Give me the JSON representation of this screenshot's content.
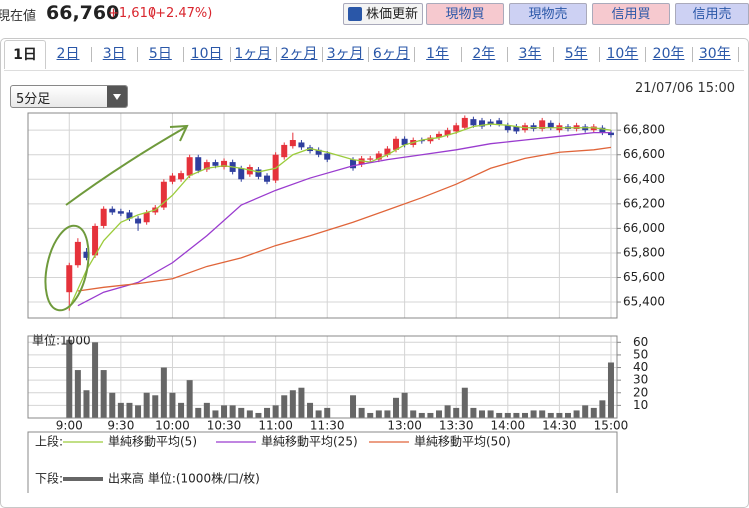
{
  "header": {
    "label": "現在値",
    "price": "66,760",
    "change": "+1,610",
    "change_pct": "(+2.47%)"
  },
  "buttons": [
    "株価更新",
    "現物買",
    "現物売",
    "信用買",
    "信用売"
  ],
  "tabs": [
    "1日",
    "2日",
    "3日",
    "5日",
    "10日",
    "1ヶ月",
    "2ヶ月",
    "3ヶ月",
    "6ヶ月",
    "1年",
    "2年",
    "3年",
    "5年",
    "10年",
    "20年",
    "30年"
  ],
  "selected_tab": 0,
  "interval": "5分足",
  "timestamp": "21/07/06 15:00",
  "legend": {
    "upper_label": "上段:",
    "lower_label": "下段:"
  },
  "chart_data": [
    {
      "type": "candlestick",
      "x": [
        0,
        1,
        2,
        3,
        4,
        5,
        6,
        7,
        8,
        9,
        10,
        11,
        12,
        13,
        14,
        15,
        16,
        17,
        18,
        19,
        20,
        21,
        22,
        23,
        24,
        25,
        26,
        27,
        28,
        29,
        30,
        33,
        34,
        35,
        36,
        37,
        38,
        39,
        40,
        41,
        42,
        43,
        44,
        45,
        46,
        47,
        48,
        49,
        50,
        51,
        52,
        53,
        54,
        55,
        56,
        57,
        58,
        59,
        60,
        61,
        62,
        63
      ],
      "open": [
        65480,
        65700,
        65810,
        65780,
        66020,
        66160,
        66140,
        66130,
        66080,
        66050,
        66130,
        66170,
        66380,
        66400,
        66430,
        66580,
        66480,
        66540,
        66500,
        66540,
        66490,
        66440,
        66480,
        66430,
        66390,
        66580,
        66670,
        66700,
        66660,
        66640,
        66610,
        66560,
        66520,
        66560,
        66560,
        66600,
        66640,
        66730,
        66680,
        66720,
        66710,
        66740,
        66760,
        66790,
        66820,
        66890,
        66880,
        66870,
        66880,
        66840,
        66830,
        66800,
        66840,
        66810,
        66860,
        66800,
        66830,
        66810,
        66830,
        66800,
        66820,
        66780
      ],
      "high": [
        65720,
        65920,
        65840,
        66040,
        66180,
        66180,
        66160,
        66150,
        66100,
        66150,
        66190,
        66400,
        66450,
        66470,
        66600,
        66600,
        66560,
        66560,
        66570,
        66560,
        66510,
        66520,
        66500,
        66450,
        66620,
        66700,
        66780,
        66720,
        66680,
        66660,
        66630,
        66580,
        66590,
        66590,
        66630,
        66670,
        66750,
        66750,
        66740,
        66740,
        66760,
        66790,
        66820,
        66860,
        66920,
        66910,
        66900,
        66890,
        66900,
        66860,
        66850,
        66860,
        66860,
        66900,
        66880,
        66860,
        66850,
        66860,
        66850,
        66850,
        66840,
        66800
      ],
      "low": [
        65330,
        65680,
        65740,
        65760,
        66000,
        66110,
        66100,
        66060,
        65980,
        66030,
        66110,
        66150,
        66360,
        66380,
        66410,
        66450,
        66460,
        66490,
        66480,
        66440,
        66380,
        66420,
        66400,
        66360,
        66370,
        66560,
        66650,
        66640,
        66610,
        66580,
        66540,
        66470,
        66500,
        66540,
        66540,
        66580,
        66620,
        66660,
        66660,
        66690,
        66690,
        66720,
        66740,
        66770,
        66800,
        66820,
        66810,
        66830,
        66830,
        66780,
        66770,
        66780,
        66790,
        66790,
        66800,
        66780,
        66790,
        66790,
        66780,
        66780,
        66760,
        66740
      ],
      "close": [
        65700,
        65890,
        65760,
        66020,
        66160,
        66130,
        66120,
        66080,
        66040,
        66130,
        66170,
        66380,
        66430,
        66450,
        66580,
        66470,
        66540,
        66510,
        66550,
        66460,
        66400,
        66500,
        66420,
        66380,
        66600,
        66680,
        66720,
        66660,
        66630,
        66600,
        66560,
        66490,
        66570,
        66570,
        66610,
        66650,
        66730,
        66680,
        66720,
        66710,
        66740,
        66770,
        66800,
        66840,
        66900,
        66840,
        66830,
        66850,
        66850,
        66800,
        66790,
        66840,
        66810,
        66880,
        66820,
        66840,
        66810,
        66840,
        66800,
        66830,
        66780,
        66760
      ],
      "up_color": "#e5323b",
      "down_color": "#2f3f9e",
      "series": [
        {
          "name": "単純移動平均(5)",
          "color": "#9ccc3c",
          "x": [
            0,
            2,
            4,
            6,
            8,
            10,
            12,
            14,
            16,
            18,
            20,
            22,
            24,
            26,
            28,
            30,
            33,
            35,
            37,
            39,
            41,
            43,
            45,
            47,
            49,
            51,
            53,
            55,
            57,
            59,
            61,
            63
          ],
          "values": [
            65350,
            65660,
            65900,
            66050,
            66110,
            66150,
            66270,
            66430,
            66490,
            66510,
            66490,
            66460,
            66490,
            66600,
            66650,
            66620,
            66560,
            66540,
            66600,
            66680,
            66720,
            66740,
            66780,
            66830,
            66850,
            66840,
            66820,
            66820,
            66820,
            66820,
            66820,
            66800
          ]
        },
        {
          "name": "単純移動平均(25)",
          "color": "#9a3ccf",
          "x": [
            1,
            4,
            8,
            12,
            16,
            20,
            24,
            28,
            33,
            37,
            41,
            45,
            49,
            53,
            57,
            61,
            63
          ],
          "values": [
            65370,
            65480,
            65560,
            65720,
            65940,
            66190,
            66310,
            66410,
            66510,
            66560,
            66600,
            66640,
            66690,
            66720,
            66750,
            66780,
            66780
          ]
        },
        {
          "name": "単純移動平均(50)",
          "color": "#e0653a",
          "x": [
            1,
            4,
            8,
            12,
            16,
            20,
            24,
            28,
            33,
            37,
            41,
            45,
            49,
            53,
            57,
            61,
            63
          ],
          "values": [
            65490,
            65520,
            65550,
            65590,
            65690,
            65760,
            65860,
            65940,
            66050,
            66150,
            66250,
            66360,
            66490,
            66570,
            66620,
            66640,
            66660
          ]
        }
      ],
      "xlim": [
        -4.8,
        63.7
      ],
      "ylim": [
        65270,
        66940
      ],
      "yticks": [
        {
          "value": 65400,
          "label": "65,400"
        },
        {
          "value": 65600,
          "label": "65,600"
        },
        {
          "value": 65800,
          "label": "65,800"
        },
        {
          "value": 66000,
          "label": "66,000"
        },
        {
          "value": 66200,
          "label": "66,200"
        },
        {
          "value": 66400,
          "label": "66,400"
        },
        {
          "value": 66600,
          "label": "66,600"
        },
        {
          "value": 66800,
          "label": "66,800"
        }
      ],
      "grid": true
    },
    {
      "type": "bar",
      "unit_label": "単位:1000",
      "x": [
        0,
        1,
        2,
        3,
        4,
        5,
        6,
        7,
        8,
        9,
        10,
        11,
        12,
        13,
        14,
        15,
        16,
        17,
        18,
        19,
        20,
        21,
        22,
        23,
        24,
        25,
        26,
        27,
        28,
        29,
        30,
        33,
        34,
        35,
        36,
        37,
        38,
        39,
        40,
        41,
        42,
        43,
        44,
        45,
        46,
        47,
        48,
        49,
        50,
        51,
        52,
        53,
        54,
        55,
        56,
        57,
        58,
        59,
        60,
        61,
        62,
        63
      ],
      "series": [
        {
          "name": "出来高 単位:(1000株/口/枚)",
          "color": "#666666",
          "values": [
            62,
            38,
            22,
            60,
            38,
            20,
            12,
            12,
            10,
            20,
            18,
            40,
            20,
            12,
            30,
            8,
            12,
            6,
            10,
            10,
            8,
            6,
            4,
            8,
            10,
            18,
            22,
            24,
            12,
            6,
            8,
            18,
            8,
            4,
            6,
            6,
            16,
            20,
            6,
            4,
            4,
            6,
            10,
            8,
            24,
            8,
            6,
            6,
            4,
            4,
            4,
            4,
            6,
            6,
            4,
            4,
            4,
            6,
            10,
            8,
            14,
            44
          ]
        }
      ],
      "xlim": [
        -4.8,
        63.7
      ],
      "ylim": [
        0,
        65
      ],
      "yticks": [
        10,
        20,
        30,
        40,
        50,
        60
      ],
      "xticks": [
        {
          "value": 0,
          "label": "9:00"
        },
        {
          "value": 6,
          "label": "9:30"
        },
        {
          "value": 12,
          "label": "10:00"
        },
        {
          "value": 18,
          "label": "10:30"
        },
        {
          "value": 24,
          "label": "11:00"
        },
        {
          "value": 30,
          "label": "11:30"
        },
        {
          "value": 39,
          "label": "13:00"
        },
        {
          "value": 45,
          "label": "13:30"
        },
        {
          "value": 51,
          "label": "14:00"
        },
        {
          "value": 57,
          "label": "14:30"
        },
        {
          "value": 63,
          "label": "15:00"
        }
      ],
      "grid": true
    }
  ]
}
